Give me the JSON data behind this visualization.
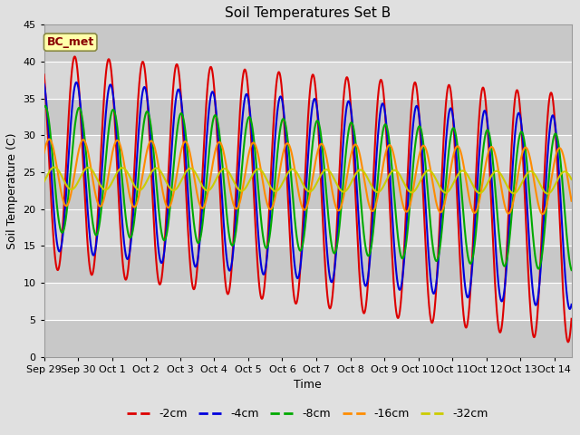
{
  "title": "Soil Temperatures Set B",
  "xlabel": "Time",
  "ylabel": "Soil Temperature (C)",
  "ylim": [
    0,
    45
  ],
  "yticks": [
    0,
    5,
    10,
    15,
    20,
    25,
    30,
    35,
    40,
    45
  ],
  "annotation": "BC_met",
  "legend_labels": [
    "-2cm",
    "-4cm",
    "-8cm",
    "-16cm",
    "-32cm"
  ],
  "legend_colors": [
    "#dd0000",
    "#0000dd",
    "#00aa00",
    "#ff8c00",
    "#cccc00"
  ],
  "background_color": "#e0e0e0",
  "plot_bg_color": "#d3d3d3",
  "x_tick_labels": [
    "Sep 29",
    "Sep 30",
    "Oct 1",
    "Oct 2",
    "Oct 3",
    "Oct 4",
    "Oct 5",
    "Oct 6",
    "Oct 7",
    "Oct 8",
    "Oct 9",
    "Oct 10",
    "Oct 11",
    "Oct 12",
    "Oct 13",
    "Oct 14"
  ],
  "figsize": [
    6.4,
    4.8
  ],
  "dpi": 100,
  "xlim": [
    0,
    15.5
  ],
  "band_color_light": "#cccccc",
  "band_color_dark": "#bbbbbb"
}
